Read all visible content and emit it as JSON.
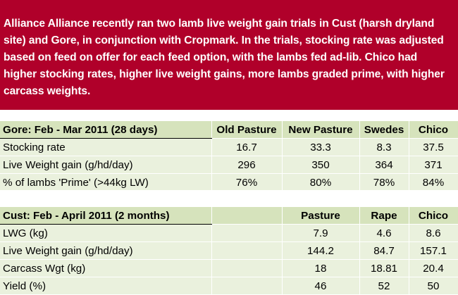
{
  "intro": "Alliance Alliance recently ran two lamb live weight gain trials in Cust (harsh dryland site) and Gore, in conjunction with Cropmark. In the trials, stocking rate was adjusted based on feed on offer for each feed option, with the lambs fed ad-lib. Chico had higher stocking rates, higher live weight gains, more lambs graded prime, with higher carcass weights.",
  "gore": {
    "title": "Gore:  Feb - Mar 2011 (28 days)",
    "columns": [
      "Old Pasture",
      "New Pasture",
      "Swedes",
      "Chico"
    ],
    "rows": [
      {
        "label": "Stocking rate",
        "values": [
          "16.7",
          "33.3",
          "8.3",
          "37.5"
        ]
      },
      {
        "label": "Live Weight gain (g/hd/day)",
        "values": [
          "296",
          "350",
          "364",
          "371"
        ]
      },
      {
        "label": "% of lambs 'Prime' (>44kg LW)",
        "values": [
          "76%",
          "80%",
          "78%",
          "84%"
        ]
      }
    ]
  },
  "cust": {
    "title": "Cust: Feb - April 2011 (2 months)",
    "columns": [
      "",
      "Pasture",
      "Rape",
      "Chico"
    ],
    "rows": [
      {
        "label": "LWG (kg)",
        "values": [
          "",
          "7.9",
          "4.6",
          "8.6"
        ]
      },
      {
        "label": "Live Weight gain (g/hd/day)",
        "values": [
          "",
          "144.2",
          "84.7",
          "157.1"
        ]
      },
      {
        "label": "Carcass Wgt (kg)",
        "values": [
          "",
          "18",
          "18.81",
          "20.4"
        ]
      },
      {
        "label": "Yield (%)",
        "values": [
          "",
          "46",
          "52",
          "50"
        ]
      }
    ]
  },
  "colors": {
    "banner_bg": "#b0002a",
    "banner_text": "#ffffff",
    "header_row_bg": "#d6e3bc",
    "data_row_bg": "#eaf1dd"
  }
}
